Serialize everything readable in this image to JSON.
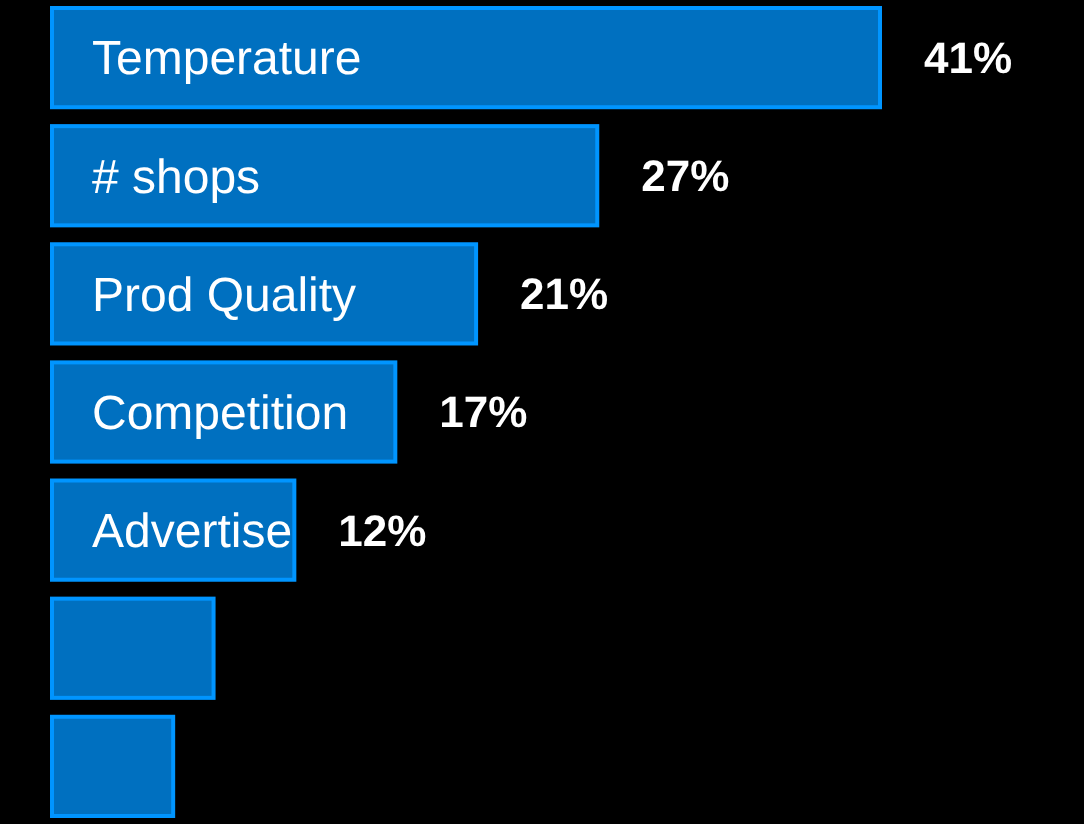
{
  "chart_data": {
    "type": "bar",
    "orientation": "horizontal",
    "categories": [
      "Temperature",
      "# shops",
      "Prod Quality",
      "Competition",
      "Advertise",
      null,
      null
    ],
    "values": [
      41,
      27,
      21,
      17,
      12,
      8,
      6
    ],
    "value_labels": [
      "41%",
      "27%",
      "21%",
      "17%",
      "12%",
      null,
      null
    ],
    "color": "#0070c0"
  }
}
